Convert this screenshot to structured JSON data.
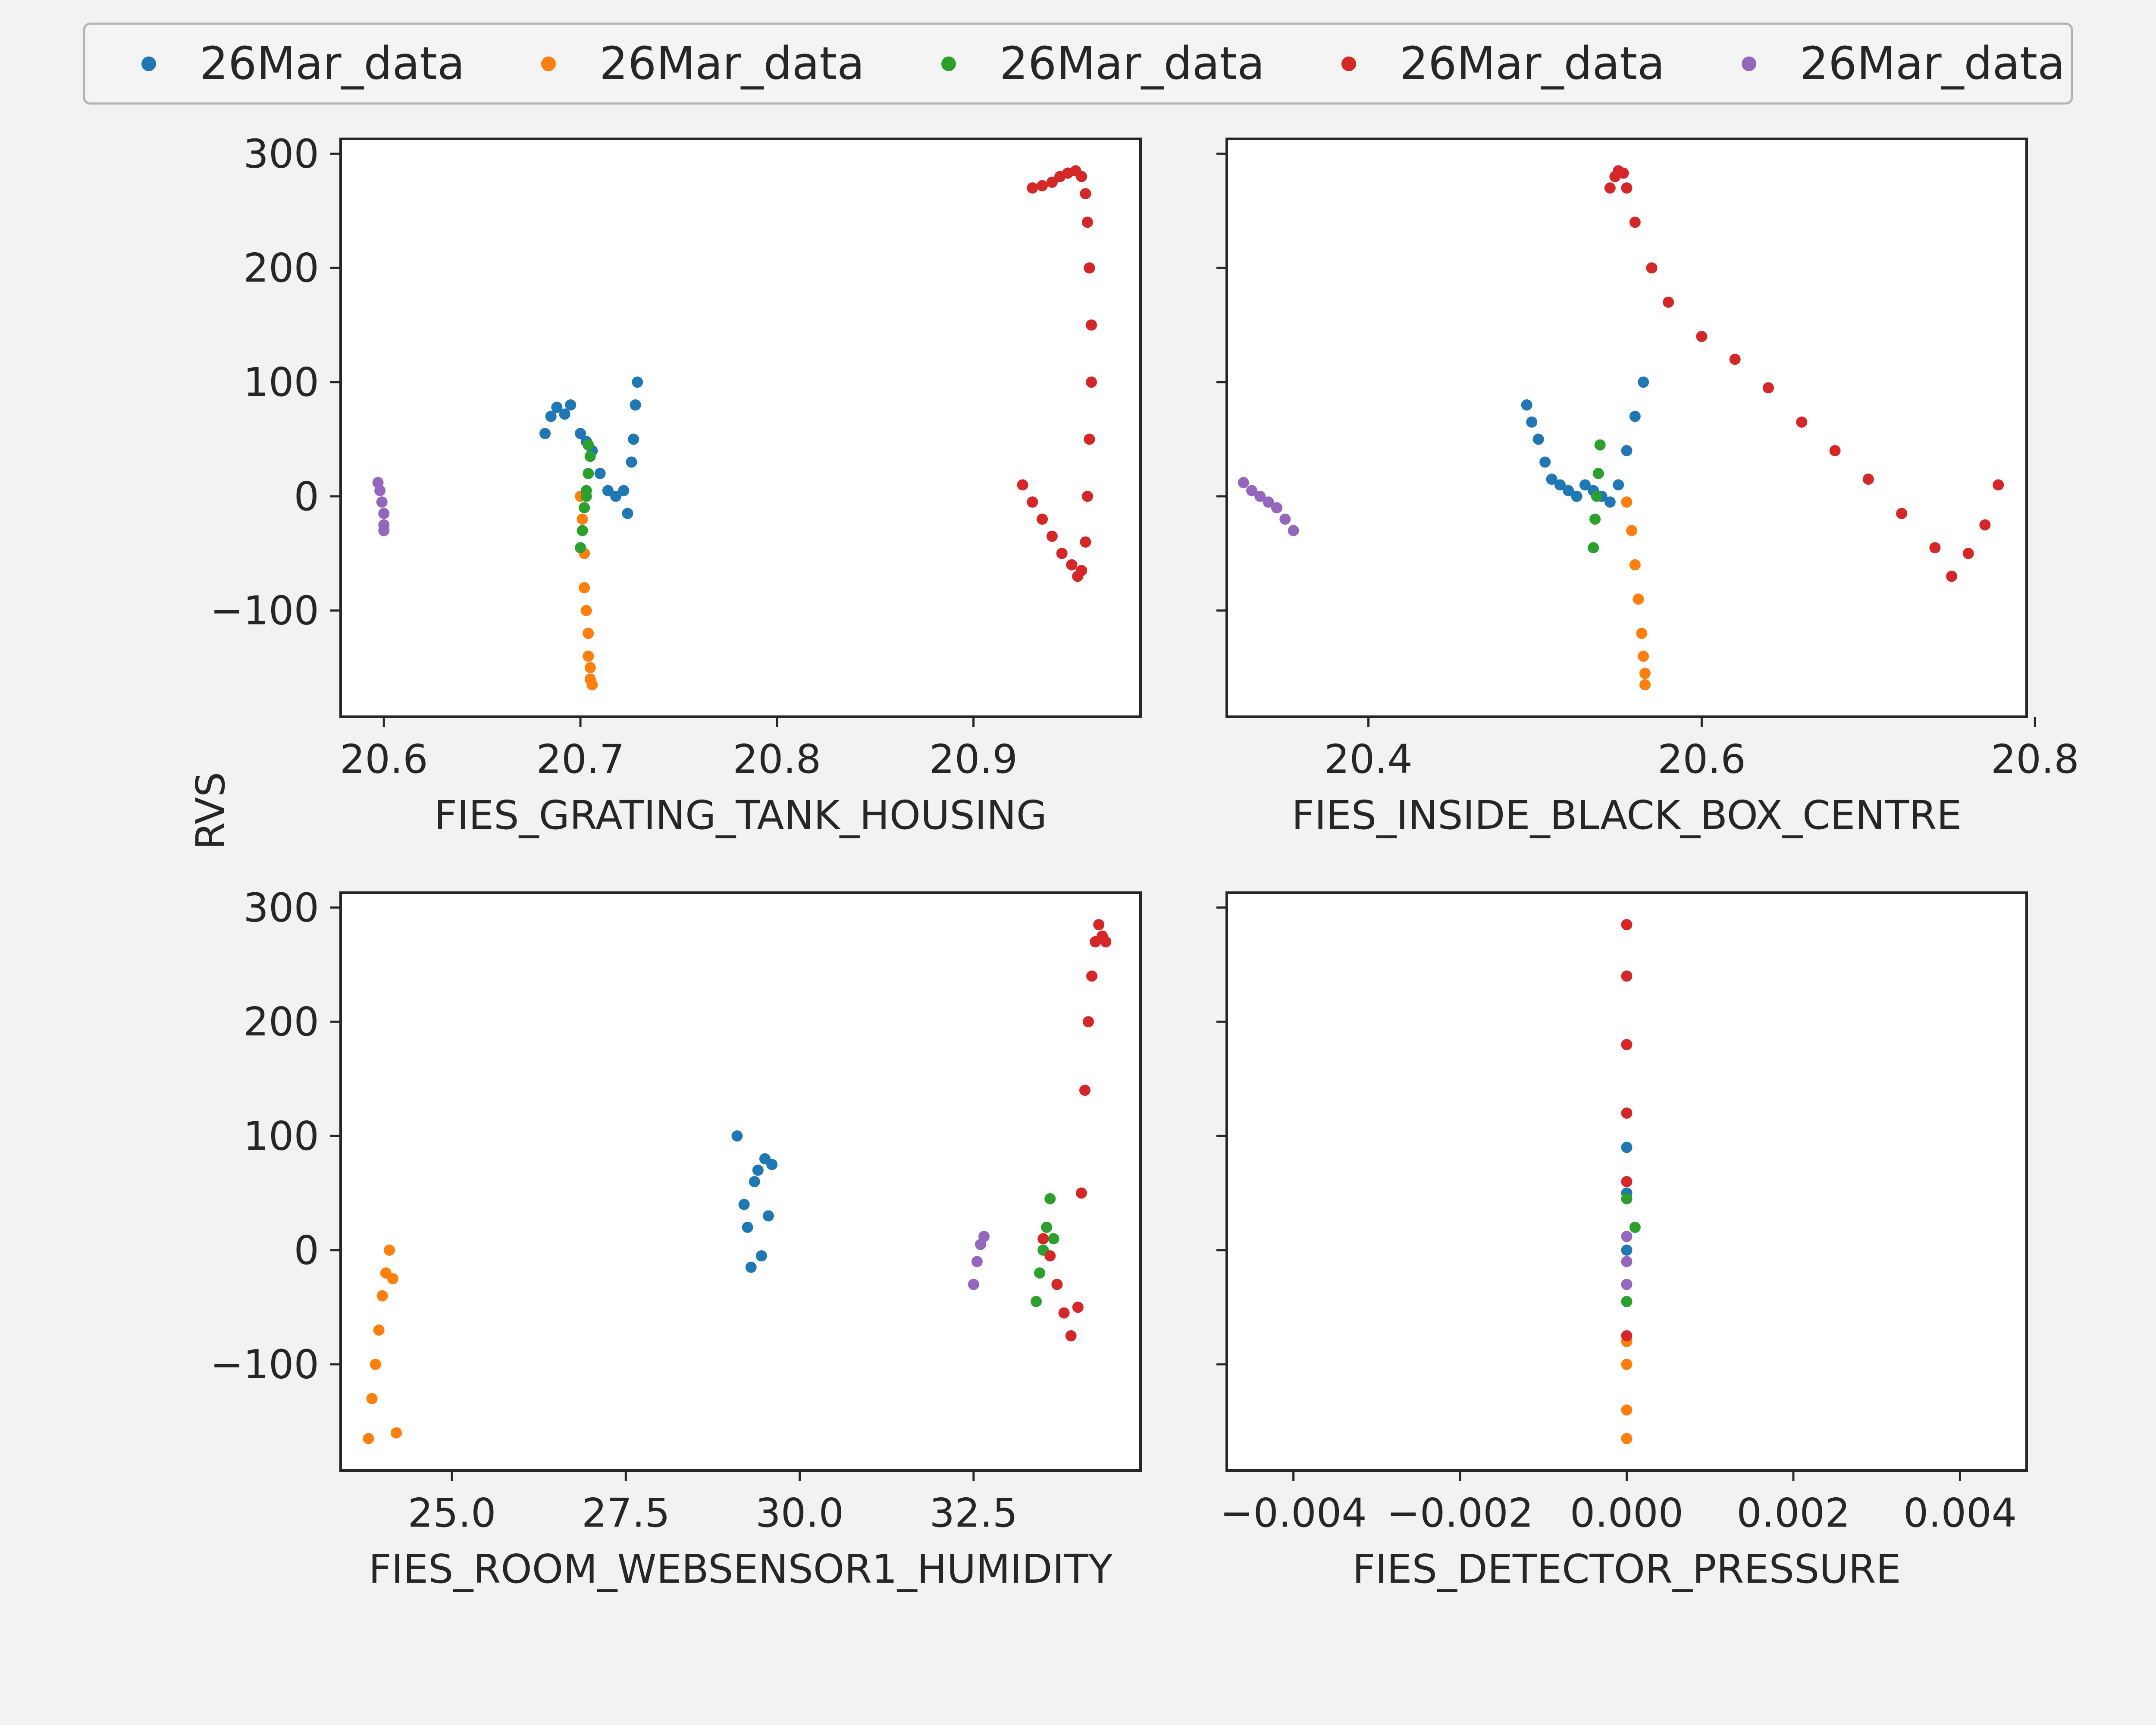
{
  "figure": {
    "legend": {
      "placement": "top",
      "entries": [
        {
          "label": "26Mar_data",
          "color": "#1f77b4"
        },
        {
          "label": "26Mar_data",
          "color": "#ff7f0e"
        },
        {
          "label": "26Mar_data",
          "color": "#2ca02c"
        },
        {
          "label": "26Mar_data",
          "color": "#d62728"
        },
        {
          "label": "26Mar_data",
          "color": "#9467bd"
        }
      ]
    },
    "shared_ylabel": "RVS"
  },
  "chart_data": [
    {
      "type": "scatter",
      "xlabel": "FIES_GRATING_TANK_HOUSING",
      "ylabel": "RVS",
      "xlim": [
        20.578,
        20.985
      ],
      "ylim": [
        -193,
        313
      ],
      "xticks": [
        "20.6",
        "20.7",
        "20.8",
        "20.9"
      ],
      "xtick_values": [
        20.6,
        20.7,
        20.8,
        20.9
      ],
      "yticks": [
        "300",
        "200",
        "100",
        "0",
        "−100"
      ],
      "ytick_values": [
        300,
        200,
        100,
        0,
        -100
      ],
      "grid": false,
      "series": [
        {
          "color": "#1f77b4",
          "x": [
            20.682,
            20.685,
            20.688,
            20.692,
            20.695,
            20.7,
            20.703,
            20.706,
            20.71,
            20.714,
            20.718,
            20.722,
            20.724,
            20.726,
            20.727,
            20.728,
            20.729
          ],
          "y": [
            55,
            70,
            78,
            72,
            80,
            55,
            48,
            40,
            20,
            5,
            0,
            5,
            -15,
            30,
            50,
            80,
            100
          ]
        },
        {
          "color": "#ff7f0e",
          "x": [
            20.7,
            20.701,
            20.702,
            20.702,
            20.703,
            20.704,
            20.704,
            20.705,
            20.705,
            20.706
          ],
          "y": [
            0,
            -20,
            -50,
            -80,
            -100,
            -120,
            -140,
            -150,
            -160,
            -165
          ]
        },
        {
          "color": "#2ca02c",
          "x": [
            20.7,
            20.701,
            20.702,
            20.703,
            20.704,
            20.705,
            20.704,
            20.703
          ],
          "y": [
            -45,
            -30,
            -10,
            5,
            20,
            35,
            45,
            0
          ]
        },
        {
          "color": "#d62728",
          "x": [
            20.925,
            20.93,
            20.935,
            20.94,
            20.945,
            20.95,
            20.953,
            20.955,
            20.957,
            20.958,
            20.959,
            20.96,
            20.96,
            20.959,
            20.958,
            20.957,
            20.955,
            20.952,
            20.948,
            20.944,
            20.94,
            20.935,
            20.93
          ],
          "y": [
            10,
            -5,
            -20,
            -35,
            -50,
            -60,
            -70,
            -65,
            -40,
            0,
            50,
            100,
            150,
            200,
            240,
            265,
            280,
            285,
            283,
            280,
            275,
            272,
            270
          ]
        },
        {
          "color": "#9467bd",
          "x": [
            20.597,
            20.598,
            20.599,
            20.6,
            20.6,
            20.6
          ],
          "y": [
            12,
            5,
            -5,
            -15,
            -25,
            -30
          ]
        }
      ]
    },
    {
      "type": "scatter",
      "xlabel": "FIES_INSIDE_BLACK_BOX_CENTRE",
      "ylabel": "",
      "xlim": [
        20.315,
        20.795
      ],
      "ylim": [
        -193,
        313
      ],
      "xticks": [
        "20.4",
        "20.6",
        "20.8"
      ],
      "xtick_values": [
        20.4,
        20.6,
        20.8
      ],
      "yticks": [],
      "ytick_values": [
        300,
        200,
        100,
        0,
        -100
      ],
      "grid": false,
      "series": [
        {
          "color": "#1f77b4",
          "x": [
            20.495,
            20.498,
            20.502,
            20.506,
            20.51,
            20.515,
            20.52,
            20.525,
            20.53,
            20.535,
            20.54,
            20.545,
            20.55,
            20.555,
            20.56,
            20.565
          ],
          "y": [
            80,
            65,
            50,
            30,
            15,
            10,
            5,
            0,
            10,
            5,
            0,
            -5,
            10,
            40,
            70,
            100
          ]
        },
        {
          "color": "#ff7f0e",
          "x": [
            20.555,
            20.558,
            20.56,
            20.562,
            20.564,
            20.565,
            20.566,
            20.566
          ],
          "y": [
            -5,
            -30,
            -60,
            -90,
            -120,
            -140,
            -155,
            -165
          ]
        },
        {
          "color": "#2ca02c",
          "x": [
            20.535,
            20.536,
            20.537,
            20.538,
            20.539
          ],
          "y": [
            -45,
            -20,
            0,
            20,
            45
          ]
        },
        {
          "color": "#d62728",
          "x": [
            20.545,
            20.548,
            20.55,
            20.553,
            20.555,
            20.56,
            20.57,
            20.58,
            20.6,
            20.62,
            20.64,
            20.66,
            20.68,
            20.7,
            20.72,
            20.74,
            20.75,
            20.76,
            20.77,
            20.778
          ],
          "y": [
            270,
            280,
            285,
            283,
            270,
            240,
            200,
            170,
            140,
            120,
            95,
            65,
            40,
            15,
            -15,
            -45,
            -70,
            -50,
            -25,
            10
          ]
        },
        {
          "color": "#9467bd",
          "x": [
            20.325,
            20.33,
            20.335,
            20.34,
            20.345,
            20.35,
            20.355
          ],
          "y": [
            12,
            5,
            0,
            -5,
            -10,
            -20,
            -30
          ]
        }
      ]
    },
    {
      "type": "scatter",
      "xlabel": "FIES_ROOM_WEBSENSOR1_HUMIDITY",
      "ylabel": "RVS",
      "xlim": [
        23.4,
        34.9
      ],
      "ylim": [
        -193,
        313
      ],
      "xticks": [
        "25.0",
        "27.5",
        "30.0",
        "32.5"
      ],
      "xtick_values": [
        25.0,
        27.5,
        30.0,
        32.5
      ],
      "yticks": [
        "300",
        "200",
        "100",
        "0",
        "−100"
      ],
      "ytick_values": [
        300,
        200,
        100,
        0,
        -100
      ],
      "grid": false,
      "series": [
        {
          "color": "#1f77b4",
          "x": [
            29.1,
            29.2,
            29.25,
            29.3,
            29.35,
            29.4,
            29.45,
            29.5,
            29.55,
            29.6
          ],
          "y": [
            100,
            40,
            20,
            -15,
            60,
            70,
            -5,
            80,
            30,
            75
          ]
        },
        {
          "color": "#ff7f0e",
          "x": [
            23.8,
            23.85,
            23.9,
            23.95,
            24.0,
            24.05,
            24.1,
            24.15,
            24.2
          ],
          "y": [
            -165,
            -130,
            -100,
            -70,
            -40,
            -20,
            0,
            -25,
            -160
          ]
        },
        {
          "color": "#2ca02c",
          "x": [
            33.4,
            33.45,
            33.5,
            33.55,
            33.6,
            33.65,
            33.7
          ],
          "y": [
            -45,
            -20,
            0,
            20,
            45,
            10,
            -30
          ]
        },
        {
          "color": "#d62728",
          "x": [
            33.5,
            33.6,
            33.7,
            33.8,
            33.9,
            34.0,
            34.05,
            34.1,
            34.15,
            34.2,
            34.25,
            34.3,
            34.35,
            34.4
          ],
          "y": [
            10,
            -5,
            -30,
            -55,
            -75,
            -50,
            50,
            140,
            200,
            240,
            270,
            285,
            275,
            270
          ]
        },
        {
          "color": "#9467bd",
          "x": [
            32.5,
            32.55,
            32.6,
            32.65
          ],
          "y": [
            -30,
            -10,
            5,
            12
          ]
        }
      ]
    },
    {
      "type": "scatter",
      "xlabel": "FIES_DETECTOR_PRESSURE",
      "ylabel": "",
      "xlim": [
        -0.0048,
        0.0048
      ],
      "ylim": [
        -193,
        313
      ],
      "xticks": [
        "−0.004",
        "−0.002",
        "0.000",
        "0.002",
        "0.004"
      ],
      "xtick_values": [
        -0.004,
        -0.002,
        0.0,
        0.002,
        0.004
      ],
      "yticks": [],
      "ytick_values": [
        300,
        200,
        100,
        0,
        -100
      ],
      "grid": false,
      "series": [
        {
          "color": "#1f77b4",
          "x": [
            0.0,
            0.0,
            0.0
          ],
          "y": [
            90,
            50,
            0
          ]
        },
        {
          "color": "#ff7f0e",
          "x": [
            0.0,
            0.0,
            0.0,
            0.0
          ],
          "y": [
            -165,
            -140,
            -100,
            -80
          ]
        },
        {
          "color": "#2ca02c",
          "x": [
            0.0,
            0.0001,
            0.0
          ],
          "y": [
            45,
            20,
            -45
          ]
        },
        {
          "color": "#d62728",
          "x": [
            0.0,
            0.0,
            0.0,
            0.0,
            0.0,
            0.0
          ],
          "y": [
            285,
            240,
            180,
            120,
            60,
            -75
          ]
        },
        {
          "color": "#9467bd",
          "x": [
            0.0,
            0.0,
            0.0
          ],
          "y": [
            12,
            -10,
            -30
          ]
        }
      ]
    }
  ]
}
